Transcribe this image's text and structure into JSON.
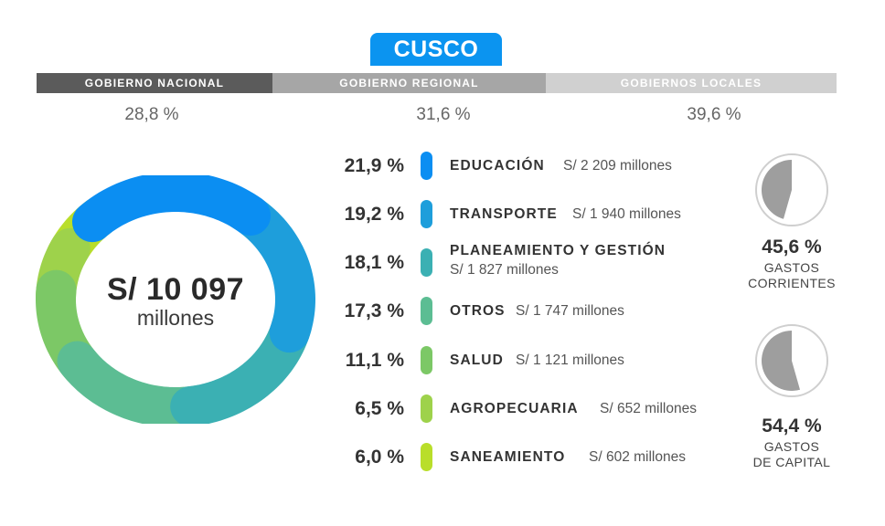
{
  "header": {
    "title": "CUSCO",
    "title_color": "#0b94f0"
  },
  "government_levels": [
    {
      "label": "GOBIERNO NACIONAL",
      "value": "28,8 %",
      "color": "#5b5b5b"
    },
    {
      "label": "GOBIERNO REGIONAL",
      "value": "31,6 %",
      "color": "#a6a6a6"
    },
    {
      "label": "GOBIERNOS LOCALES",
      "value": "39,6 %",
      "color": "#d0d0d0"
    }
  ],
  "total": {
    "value": "S/ 10 097",
    "unit": "millones"
  },
  "chart_data": {
    "type": "pie",
    "variant": "donut",
    "categories": [
      "EDUCACIÓN",
      "TRANSPORTE",
      "PLANEAMIENTO Y GESTIÓN",
      "OTROS",
      "SALUD",
      "AGROPECUARIA",
      "SANEAMIENTO"
    ],
    "percent_labels": [
      "21,9 %",
      "19,2 %",
      "18,1 %",
      "17,3 %",
      "11,1 %",
      "6,5 %",
      "6,0 %"
    ],
    "values": [
      21.9,
      19.2,
      18.1,
      17.3,
      11.1,
      6.5,
      6.0
    ],
    "amount_labels": [
      "S/ 2 209 millones",
      "S/ 1 940 millones",
      "S/ 1 827 millones",
      "S/ 1 747 millones",
      "S/ 1 121 millones",
      "S/ 652 millones",
      "S/ 602 millones"
    ],
    "colors": [
      "#0b8ef2",
      "#1e9edb",
      "#3bb0b3",
      "#5cbd93",
      "#7cc866",
      "#9ed24b",
      "#b9de2a"
    ]
  },
  "spending_type": [
    {
      "percent": "45,6 %",
      "label_line1": "GASTOS",
      "label_line2": "CORRIENTES",
      "value": 45.6
    },
    {
      "percent": "54,4 %",
      "label_line1": "GASTOS",
      "label_line2": "DE CAPITAL",
      "value": 54.4
    }
  ],
  "spending_colors": {
    "fill": "#9e9e9e",
    "ring": "#cfcfcf"
  }
}
